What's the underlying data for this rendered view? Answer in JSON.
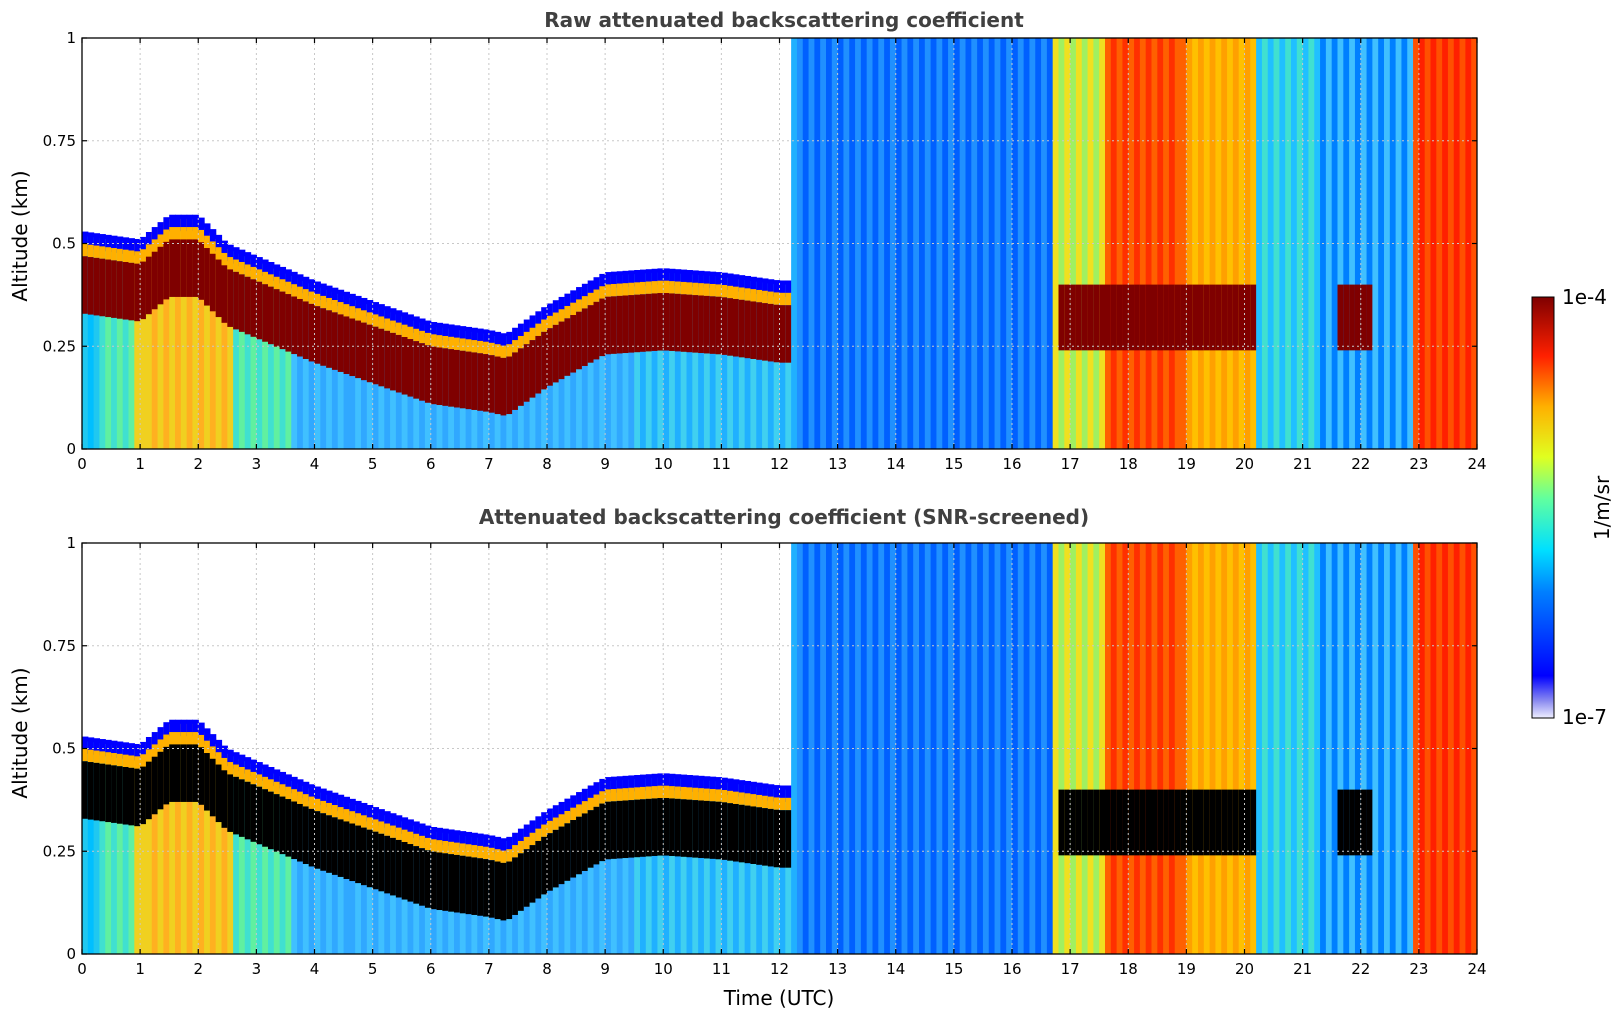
{
  "figure": {
    "xlabel": "Time (UTC)"
  },
  "chart_data": [
    {
      "type": "heatmap",
      "title": "Raw attenuated backscattering coefficient",
      "xlabel": "",
      "ylabel": "Altitude (km)",
      "xlim": [
        0,
        24
      ],
      "ylim": [
        0,
        1
      ],
      "xticks": [
        0,
        1,
        2,
        3,
        4,
        5,
        6,
        7,
        8,
        9,
        10,
        11,
        12,
        13,
        14,
        15,
        16,
        17,
        18,
        19,
        20,
        21,
        22,
        23,
        24
      ],
      "yticks": [
        {
          "v": 0,
          "label": "0"
        },
        {
          "v": 0.25,
          "label": "0.25"
        },
        {
          "v": 0.5,
          "label": "0.5"
        },
        {
          "v": 0.75,
          "label": "0.75"
        },
        {
          "v": 1,
          "label": "1"
        }
      ],
      "grid": true,
      "saturation_color": "#7f0000",
      "boundary_layer_top_km": {
        "t": [
          0,
          0.5,
          1,
          1.5,
          2,
          2.5,
          3,
          4,
          5,
          6,
          7,
          7.3,
          8,
          9,
          10,
          11,
          12
        ],
        "z": [
          0.52,
          0.51,
          0.5,
          0.56,
          0.56,
          0.49,
          0.46,
          0.4,
          0.35,
          0.3,
          0.28,
          0.27,
          0.34,
          0.42,
          0.43,
          0.42,
          0.4
        ]
      }
    },
    {
      "type": "heatmap",
      "title": "Attenuated backscattering coefficient (SNR-screened)",
      "xlabel": "Time (UTC)",
      "ylabel": "Altitude (km)",
      "xlim": [
        0,
        24
      ],
      "ylim": [
        0,
        1
      ],
      "xticks": [
        0,
        1,
        2,
        3,
        4,
        5,
        6,
        7,
        8,
        9,
        10,
        11,
        12,
        13,
        14,
        15,
        16,
        17,
        18,
        19,
        20,
        21,
        22,
        23,
        24
      ],
      "yticks": [
        {
          "v": 0,
          "label": "0"
        },
        {
          "v": 0.25,
          "label": "0.25"
        },
        {
          "v": 0.5,
          "label": "0.5"
        },
        {
          "v": 0.75,
          "label": "0.75"
        },
        {
          "v": 1,
          "label": "1"
        }
      ],
      "grid": true,
      "saturation_color": "#000000",
      "boundary_layer_top_km": {
        "t": [
          0,
          0.5,
          1,
          1.5,
          2,
          2.5,
          3,
          4,
          5,
          6,
          7,
          7.3,
          8,
          9,
          10,
          11,
          12
        ],
        "z": [
          0.52,
          0.51,
          0.5,
          0.56,
          0.56,
          0.49,
          0.46,
          0.4,
          0.35,
          0.3,
          0.28,
          0.27,
          0.34,
          0.42,
          0.43,
          0.42,
          0.4
        ]
      }
    }
  ],
  "colorbar": {
    "label": "1/m/sr",
    "max_label": "1e-4",
    "min_label": "1e-7",
    "scale": "log",
    "range": [
      1e-07,
      0.0001
    ],
    "colormap": "jet"
  }
}
